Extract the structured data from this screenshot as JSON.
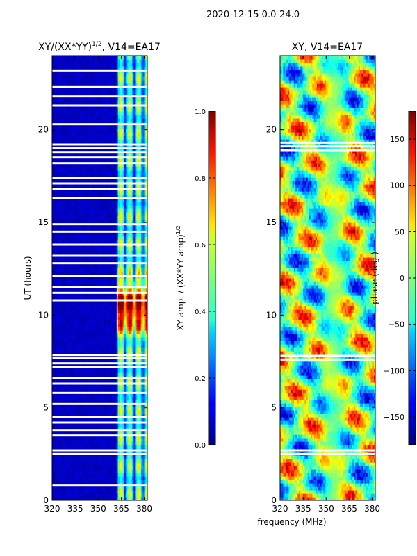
{
  "figure": {
    "suptitle": "2020-12-15 0.0-24.0",
    "xlabel": "frequency (MHz)",
    "ylabel": "UT (hours)"
  },
  "chart_data": [
    {
      "type": "heatmap",
      "title": "XY/(XX*YY)^1/2, V14=EA17",
      "title_base": "XY/(XX*YY)",
      "title_exp": "1/2",
      "title_tail": ", V14=EA17",
      "xlabel": "frequency (MHz)",
      "ylabel": "UT (hours)",
      "xlim": [
        320,
        382
      ],
      "ylim": [
        0,
        24
      ],
      "xticks": [
        320,
        335,
        350,
        365,
        380
      ],
      "yticks": [
        0,
        5,
        10,
        15,
        20
      ],
      "colormap": "jet",
      "colorbar": {
        "label": "XY amp. / (XX*YY amp)^1/2",
        "label_base": "XY amp. / (XX*YY amp)",
        "label_exp": "1/2",
        "range": [
          0.0,
          1.0
        ],
        "ticks": [
          0.0,
          0.2,
          0.4,
          0.6,
          0.8,
          1.0
        ],
        "tick_labels": [
          "0.0",
          "0.2",
          "0.4",
          "0.6",
          "0.8",
          "1.0"
        ]
      },
      "description": "Mostly low normalized amplitude (~0.05) below 362 MHz; high-amplitude striped band 362-381 MHz, strongest (~0.9) near 10-11 h UT.",
      "flagged_ut_hours": [
        0.8,
        2.5,
        2.7,
        3.5,
        3.8,
        4.2,
        4.5,
        5.2,
        5.8,
        6.3,
        6.6,
        7.2,
        7.4,
        7.7,
        7.85,
        10.8,
        11.2,
        11.5,
        12.1,
        12.8,
        13.2,
        13.8,
        14.5,
        14.9,
        16.3,
        16.8,
        17.1,
        17.4,
        18.2,
        18.5,
        18.8,
        19.0,
        19.2,
        20.3,
        21.3,
        21.8,
        22.3,
        23.2
      ]
    },
    {
      "type": "heatmap",
      "title": "XY, V14=EA17",
      "xlabel": "frequency (MHz)",
      "ylabel": "",
      "xlim": [
        320,
        382
      ],
      "ylim": [
        0,
        24
      ],
      "xticks": [
        320,
        335,
        350,
        365,
        380
      ],
      "yticks": [
        0,
        5,
        10,
        15,
        20
      ],
      "colormap": "jet",
      "colorbar": {
        "label": "phase (deg.)",
        "range": [
          -180,
          180
        ],
        "ticks": [
          -150,
          -100,
          -50,
          0,
          50,
          100,
          150
        ],
        "tick_labels": [
          "−150",
          "−100",
          "−50",
          "0",
          "50",
          "100",
          "150"
        ]
      },
      "description": "Phase of XY cross-correlation; vertical green band near 350-360 MHz, wrapping red/blue patterns elsewhere.",
      "flagged_ut_hours": [
        2.5,
        2.7,
        7.6,
        7.8,
        18.9,
        19.1,
        19.3
      ]
    }
  ]
}
